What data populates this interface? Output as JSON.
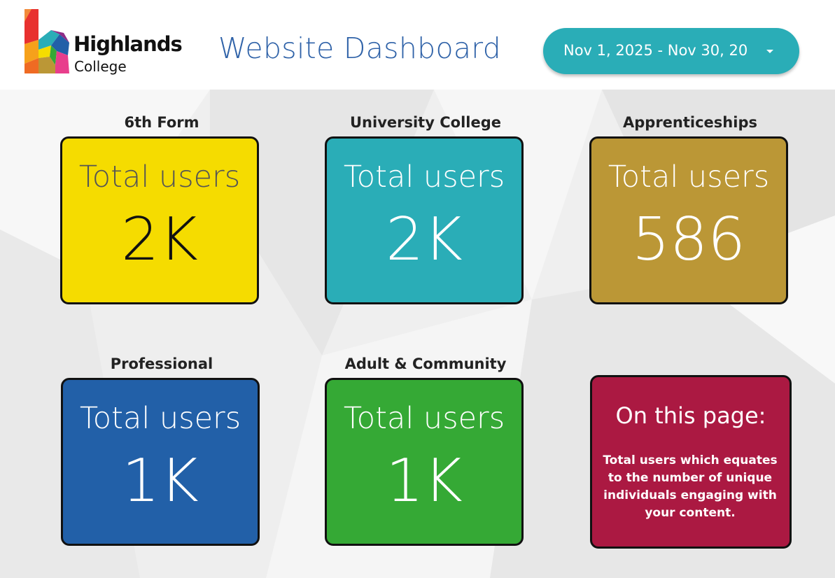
{
  "header": {
    "logo_name": "Highlands",
    "logo_sub": "College",
    "title": "Website Dashboard",
    "date_range": "Nov 1, 2025 - Nov 30, 20"
  },
  "cards": [
    {
      "section": "6th Form",
      "metric": "Total users",
      "value": "2K",
      "color": "#f5dc00",
      "text_color": "#111111",
      "label_color": "#555555"
    },
    {
      "section": "University College",
      "metric": "Total users",
      "value": "2K",
      "color": "#2aadb7",
      "text_color": "#ffffff",
      "label_color": "#ffffff"
    },
    {
      "section": "Apprenticeships",
      "metric": "Total users",
      "value": "586",
      "color": "#bb9736",
      "text_color": "#ffffff",
      "label_color": "#ffffff"
    },
    {
      "section": "Professional",
      "metric": "Total users",
      "value": "1K",
      "color": "#2260a8",
      "text_color": "#ffffff",
      "label_color": "#ffffff"
    },
    {
      "section": "Adult & Community",
      "metric": "Total users",
      "value": "1K",
      "color": "#35a935",
      "text_color": "#ffffff",
      "label_color": "#ffffff"
    }
  ],
  "info_card": {
    "heading": "On this page:",
    "body": "Total users which equates to the number of unique individuals engaging with your content.",
    "color": "#ab1942"
  },
  "icons": {
    "logo": "highlands-college-logo",
    "dropdown": "caret-down-icon"
  }
}
